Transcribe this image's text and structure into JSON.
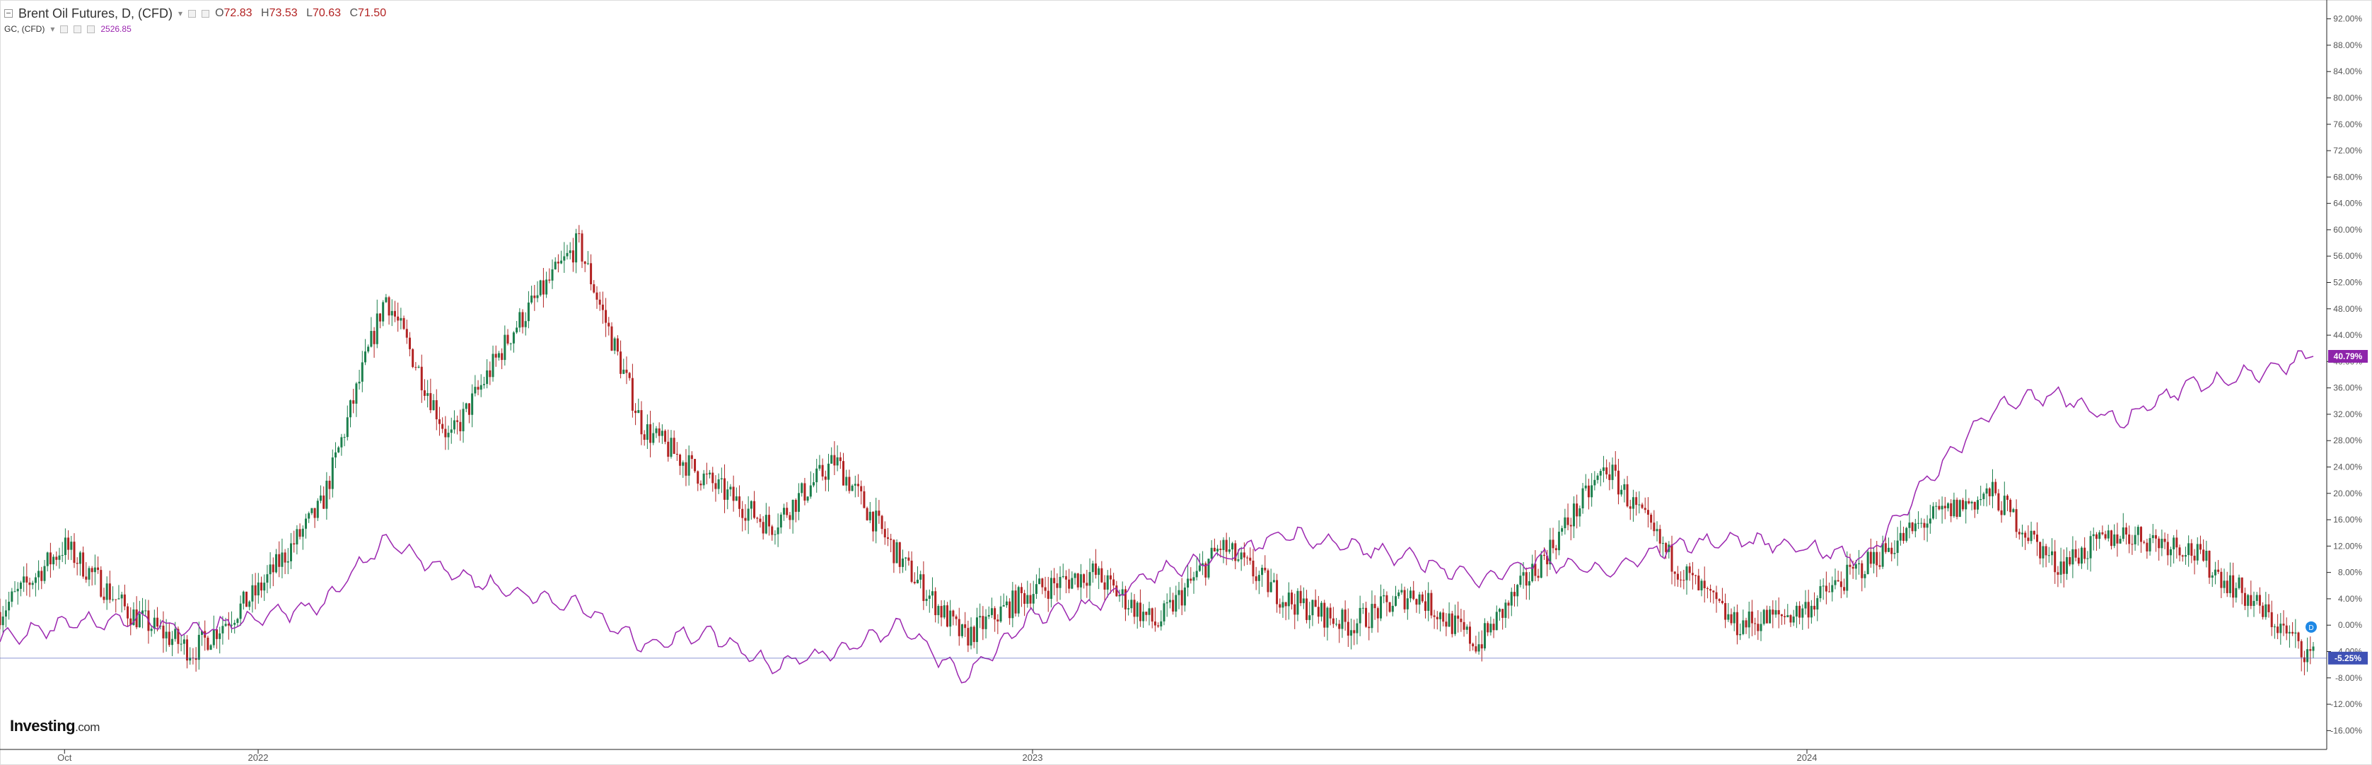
{
  "legend": {
    "main_title": "Brent Oil Futures, D, (CFD)",
    "open_label": "O",
    "open": "72.83",
    "high_label": "H",
    "high": "73.53",
    "low_label": "L",
    "low": "70.63",
    "close_label": "C",
    "close": "71.50",
    "overlay_title": "GC, (CFD)",
    "overlay_value": "2526.85"
  },
  "branding": {
    "logo_main": "Investing",
    "logo_suffix": ".com"
  },
  "colors": {
    "up_candle": "#1b7f4c",
    "down_candle": "#b22222",
    "overlay_line": "#9c27b0",
    "last_price_line": "#3f51b5",
    "overlay_tag": "#8e24aa",
    "price_tag": "#3f51b5"
  },
  "chart_data": {
    "type": "line",
    "title": "Brent Oil Futures, D, (CFD)",
    "xlabel": "",
    "ylabel": "",
    "y_unit": "percent change",
    "ylim": [
      -18,
      94
    ],
    "y_ticks": [
      "92.00%",
      "88.00%",
      "84.00%",
      "80.00%",
      "76.00%",
      "72.00%",
      "68.00%",
      "64.00%",
      "60.00%",
      "56.00%",
      "52.00%",
      "48.00%",
      "44.00%",
      "40.00%",
      "36.00%",
      "32.00%",
      "28.00%",
      "24.00%",
      "20.00%",
      "16.00%",
      "12.00%",
      "8.00%",
      "4.00%",
      "0.00%",
      "-4.00%",
      "-8.00%",
      "-12.00%",
      "-16.00%"
    ],
    "x_tick_labels": [
      "Oct",
      "2022",
      "2023",
      "2024"
    ],
    "x_tick_months": [
      "2021-10",
      "2022-01",
      "2023-01",
      "2024-01"
    ],
    "x_range": [
      "2021-09",
      "2024-09"
    ],
    "grid": false,
    "legend_placement": "top-left",
    "series": [
      {
        "name": "Brent Oil Futures, D, (CFD)",
        "kind": "candlestick",
        "x": [
          "2021-09",
          "2021-10",
          "2021-11",
          "2021-12",
          "2022-01",
          "2022-02",
          "2022-03",
          "2022-04",
          "2022-05",
          "2022-06",
          "2022-07",
          "2022-08",
          "2022-09",
          "2022-10",
          "2022-11",
          "2022-12",
          "2023-01",
          "2023-02",
          "2023-03",
          "2023-04",
          "2023-05",
          "2023-06",
          "2023-07",
          "2023-08",
          "2023-09",
          "2023-10",
          "2023-11",
          "2023-12",
          "2024-01",
          "2024-02",
          "2024-03",
          "2024-04",
          "2024-05",
          "2024-06",
          "2024-07",
          "2024-08",
          "2024-09"
        ],
        "values": [
          2,
          12,
          2,
          -4,
          5,
          18,
          50,
          28,
          45,
          58,
          30,
          22,
          15,
          25,
          10,
          -2,
          5,
          8,
          0,
          12,
          4,
          0,
          5,
          -3,
          10,
          24,
          10,
          0,
          2,
          9,
          16,
          20,
          9,
          14,
          12,
          4,
          -5
        ]
      },
      {
        "name": "GC, (CFD)",
        "kind": "line",
        "x": [
          "2021-09",
          "2021-10",
          "2021-11",
          "2021-12",
          "2022-01",
          "2022-02",
          "2022-03",
          "2022-04",
          "2022-05",
          "2022-06",
          "2022-07",
          "2022-08",
          "2022-09",
          "2022-10",
          "2022-11",
          "2022-12",
          "2023-01",
          "2023-02",
          "2023-03",
          "2023-04",
          "2023-05",
          "2023-06",
          "2023-07",
          "2023-08",
          "2023-09",
          "2023-10",
          "2023-11",
          "2023-12",
          "2024-01",
          "2024-02",
          "2024-03",
          "2024-04",
          "2024-05",
          "2024-06",
          "2024-07",
          "2024-08",
          "2024-09"
        ],
        "values": [
          -2,
          0,
          1,
          -1,
          1,
          3,
          13,
          8,
          5,
          3,
          -3,
          -1,
          -6,
          -4,
          0,
          -8,
          1,
          3,
          8,
          10,
          14,
          12,
          10,
          7,
          10,
          8,
          12,
          13,
          12,
          10,
          22,
          33,
          35,
          31,
          36,
          38,
          40.79
        ]
      }
    ],
    "last_values": {
      "GC, (CFD)": "40.79%",
      "Brent Oil Futures, D, (CFD)": "-5.25%"
    }
  }
}
